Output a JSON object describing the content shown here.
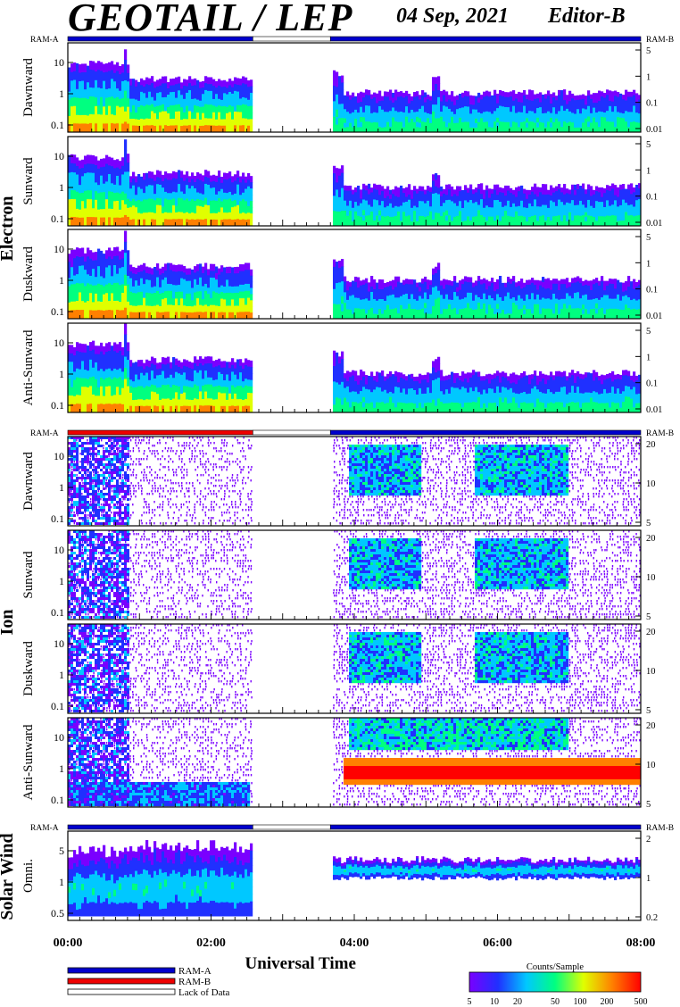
{
  "header": {
    "title": "GEOTAIL / LEP",
    "date": "04 Sep, 2021",
    "editor": "Editor-B"
  },
  "colors": {
    "ram_a": "#0000cc",
    "ram_b": "#ee0000",
    "lack": "#ffffff",
    "colorbar": [
      "#7a00ff",
      "#2030ff",
      "#00c8ff",
      "#00ff80",
      "#e0ff00",
      "#ff8000",
      "#ff0000"
    ]
  },
  "groups": [
    {
      "label": "Electron",
      "ram_a": "RAM-A",
      "ram_b": "RAM-B",
      "panels": [
        {
          "label": "Dawnward",
          "ticks_left": [
            "10",
            "1",
            "0.1"
          ],
          "ticks_right": [
            "5",
            "1",
            "0.1",
            "0.01"
          ]
        },
        {
          "label": "Sunward",
          "ticks_left": [
            "10",
            "1",
            "0.1"
          ],
          "ticks_right": [
            "5",
            "1",
            "0.1",
            "0.01"
          ]
        },
        {
          "label": "Duskward",
          "ticks_left": [
            "10",
            "1",
            "0.1"
          ],
          "ticks_right": [
            "5",
            "1",
            "0.1",
            "0.01"
          ]
        },
        {
          "label": "Anti-Sunward",
          "ticks_left": [
            "10",
            "1",
            "0.1"
          ],
          "ticks_right": [
            "5",
            "1",
            "0.1",
            "0.01"
          ]
        }
      ]
    },
    {
      "label": "Ion",
      "ram_a": "RAM-A",
      "ram_b": "RAM-B",
      "panels": [
        {
          "label": "Dawnward",
          "ticks_left": [
            "10",
            "1",
            "0.1"
          ],
          "ticks_right": [
            "20",
            "10",
            "5"
          ]
        },
        {
          "label": "Sunward",
          "ticks_left": [
            "10",
            "1",
            "0.1"
          ],
          "ticks_right": [
            "20",
            "10",
            "5"
          ]
        },
        {
          "label": "Duskward",
          "ticks_left": [
            "10",
            "1",
            "0.1"
          ],
          "ticks_right": [
            "20",
            "10",
            "5"
          ]
        },
        {
          "label": "Anti-Sunward",
          "ticks_left": [
            "10",
            "1",
            "0.1"
          ],
          "ticks_right": [
            "20",
            "10",
            "5"
          ]
        }
      ]
    },
    {
      "label": "Solar Wind",
      "ram_a": "RAM-A",
      "ram_b": "RAM-B",
      "panels": [
        {
          "label": "Omni.",
          "ticks_left": [
            "5",
            "1",
            "0.5"
          ],
          "ticks_right": [
            "2",
            "1",
            "0.2"
          ]
        }
      ]
    }
  ],
  "legend": {
    "ram_a": "RAM-A",
    "ram_b": "RAM-B",
    "lack": "Lack of Data"
  },
  "colorbar": {
    "title": "Counts/Sample",
    "ticks": [
      "5",
      "10",
      "20",
      "50",
      "100",
      "200",
      "500"
    ]
  },
  "chart_data": {
    "type": "heatmap",
    "xlabel": "Universal Time",
    "x_ticks": [
      "00:00",
      "02:00",
      "04:00",
      "06:00",
      "08:00"
    ],
    "x_range": [
      "00:00",
      "08:00"
    ],
    "data_gap": [
      "02:35",
      "03:40"
    ],
    "ram_status": {
      "electron": [
        {
          "from": "00:00",
          "to": "02:35",
          "mode": "RAM-A"
        },
        {
          "from": "02:35",
          "to": "03:40",
          "mode": "Lack of Data"
        },
        {
          "from": "03:40",
          "to": "08:00",
          "mode": "RAM-A"
        }
      ],
      "ion": [
        {
          "from": "00:00",
          "to": "02:35",
          "mode": "RAM-B"
        },
        {
          "from": "02:35",
          "to": "03:40",
          "mode": "Lack of Data"
        },
        {
          "from": "03:40",
          "to": "08:00",
          "mode": "RAM-A"
        }
      ],
      "solar_wind": [
        {
          "from": "00:00",
          "to": "02:35",
          "mode": "RAM-A"
        },
        {
          "from": "02:35",
          "to": "03:40",
          "mode": "Lack of Data"
        },
        {
          "from": "03:40",
          "to": "08:00",
          "mode": "RAM-A"
        }
      ]
    },
    "colorbar_range": [
      5,
      500
    ]
  }
}
